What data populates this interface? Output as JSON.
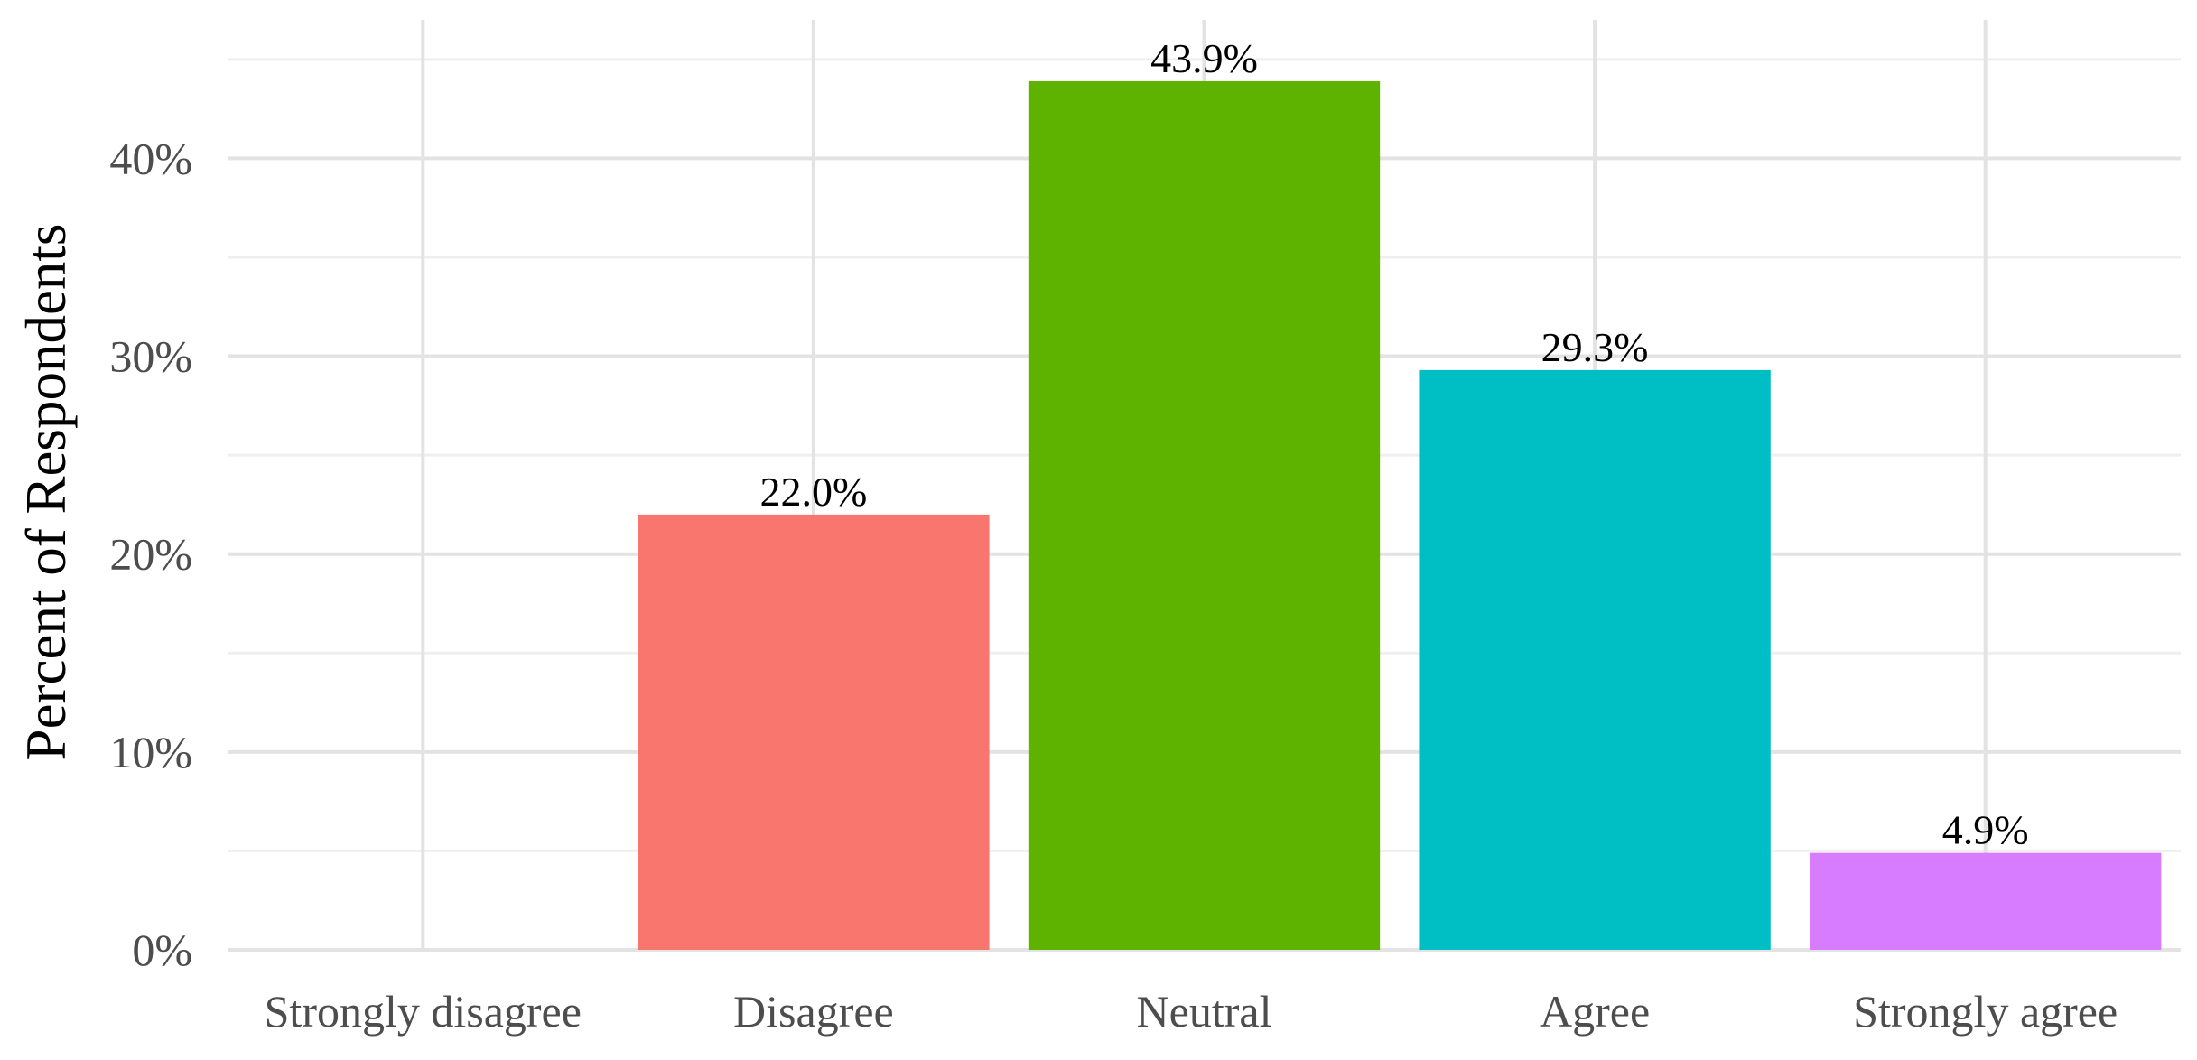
{
  "chart_data": {
    "type": "bar",
    "title": "",
    "xlabel": "",
    "ylabel": "Percent of Respondents",
    "categories": [
      "Strongly disagree",
      "Disagree",
      "Neutral",
      "Agree",
      "Strongly agree"
    ],
    "values": [
      0,
      22.0,
      43.9,
      29.3,
      4.9
    ],
    "data_labels": [
      "",
      "22.0%",
      "43.9%",
      "29.3%",
      "4.9%"
    ],
    "bar_colors": [
      "#F8766D",
      "#F8766D",
      "#5EB300",
      "#00BFC4",
      "#D77BFF"
    ],
    "ylim": [
      0,
      47
    ],
    "yticks": [
      0,
      10,
      20,
      30,
      40
    ],
    "ytick_labels": [
      "0%",
      "10%",
      "20%",
      "30%",
      "40%"
    ],
    "grid": true,
    "legend": "none"
  }
}
